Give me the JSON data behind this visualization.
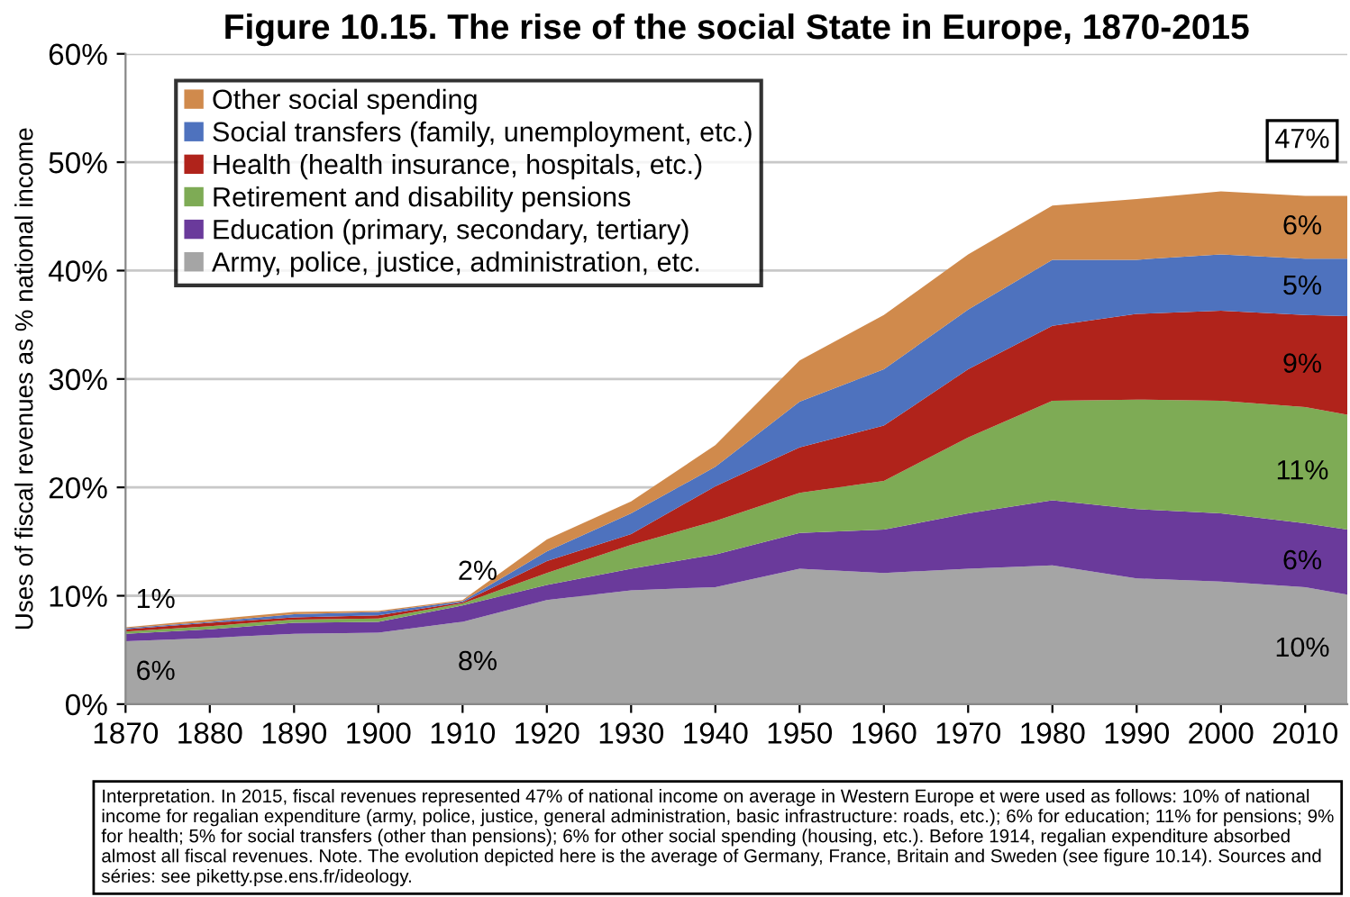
{
  "chart_data": {
    "type": "area",
    "stacked": true,
    "title": "Figure 10.15. The rise of the social State in Europe, 1870-2015",
    "ylabel": "Uses of fiscal revenues as % national income",
    "x": [
      1870,
      1880,
      1890,
      1900,
      1910,
      1920,
      1930,
      1940,
      1950,
      1960,
      1970,
      1980,
      1990,
      2000,
      2010,
      2015
    ],
    "series": [
      {
        "name": "Army, police, justice, administration, etc.",
        "color": "#a5a5a5",
        "values": [
          5.8,
          6.1,
          6.5,
          6.6,
          7.6,
          9.6,
          10.5,
          10.8,
          12.5,
          12.1,
          12.5,
          12.8,
          11.6,
          11.3,
          10.8,
          10.1
        ],
        "value_labels": [
          "6%",
          null,
          null,
          null,
          "8%",
          null,
          null,
          null,
          null,
          null,
          null,
          null,
          null,
          null,
          null,
          "10%"
        ]
      },
      {
        "name": "Education (primary, secondary, tertiary)",
        "color": "#6a3a9b",
        "values": [
          0.7,
          0.8,
          1.0,
          1.0,
          1.5,
          1.4,
          2.0,
          3.0,
          3.3,
          4.0,
          5.1,
          6.0,
          6.4,
          6.3,
          5.9,
          6.0
        ],
        "value_labels": [
          "1%",
          null,
          null,
          null,
          "2%",
          null,
          null,
          null,
          null,
          null,
          null,
          null,
          null,
          null,
          null,
          "6%"
        ]
      },
      {
        "name": "Retirement and disability pensions",
        "color": "#7eab55",
        "values": [
          0.2,
          0.3,
          0.3,
          0.3,
          0.2,
          1.1,
          2.2,
          3.1,
          3.7,
          4.5,
          7.0,
          9.2,
          10.1,
          10.4,
          10.7,
          10.6
        ],
        "value_labels": [
          null,
          null,
          null,
          null,
          null,
          null,
          null,
          null,
          null,
          null,
          null,
          null,
          null,
          null,
          null,
          "11%"
        ]
      },
      {
        "name": "Health (health insurance, hospitals, etc.)",
        "color": "#b0231b",
        "values": [
          0.2,
          0.3,
          0.2,
          0.3,
          0.1,
          1.1,
          1.0,
          3.2,
          4.2,
          5.1,
          6.3,
          6.9,
          7.9,
          8.3,
          8.5,
          9.1
        ],
        "value_labels": [
          null,
          null,
          null,
          null,
          null,
          null,
          null,
          null,
          null,
          null,
          null,
          null,
          null,
          null,
          null,
          "9%"
        ]
      },
      {
        "name": "Social transfers (family, unemployment, etc.)",
        "color": "#4e72be",
        "values": [
          0.1,
          0.1,
          0.3,
          0.3,
          0.1,
          0.9,
          1.9,
          1.8,
          4.2,
          5.2,
          5.5,
          6.1,
          5.0,
          5.2,
          5.2,
          5.3
        ],
        "value_labels": [
          null,
          null,
          null,
          null,
          null,
          null,
          null,
          null,
          null,
          null,
          null,
          null,
          null,
          null,
          null,
          "5%"
        ]
      },
      {
        "name": "Other social spending",
        "color": "#d08a4c",
        "values": [
          0.1,
          0.2,
          0.2,
          0.1,
          0.1,
          1.1,
          1.1,
          2.0,
          3.8,
          5.0,
          5.1,
          5.0,
          5.6,
          5.8,
          5.8,
          5.8
        ],
        "value_labels": [
          null,
          null,
          null,
          null,
          null,
          null,
          null,
          null,
          null,
          null,
          null,
          null,
          null,
          null,
          null,
          "6%"
        ]
      }
    ],
    "totals": [
      null,
      null,
      null,
      null,
      null,
      null,
      null,
      null,
      null,
      null,
      null,
      null,
      null,
      null,
      null,
      "47%"
    ],
    "xlim": [
      1870,
      2015
    ],
    "xticks": [
      1870,
      1880,
      1890,
      1900,
      1910,
      1920,
      1930,
      1940,
      1950,
      1960,
      1970,
      1980,
      1990,
      2000,
      2010
    ],
    "ylim": [
      0,
      60
    ],
    "yticks": [
      {
        "value": 0,
        "label": "0%"
      },
      {
        "value": 10,
        "label": "10%"
      },
      {
        "value": 20,
        "label": "20%"
      },
      {
        "value": 30,
        "label": "30%"
      },
      {
        "value": 40,
        "label": "40%"
      },
      {
        "value": 50,
        "label": "50%"
      },
      {
        "value": 60,
        "label": "60%"
      }
    ],
    "grid": "y",
    "legend": "top left",
    "annotations": [
      "Interpretation. In 2015, fiscal revenues represented 47% of national income on average in Western Europe et were used as follows: 10% of national income for regalian expenditure (army, police, justice, general administration, basic infrastructure: roads, etc.); 6% for education; 11% for pensions; 9% for health; 5% for social transfers (other than pensions); 6% for other social spending (housing, etc.). Before 1914, regalian expenditure absorbed almost all fiscal revenues. Note. The evolution depicted here is the average of Germany, France, Britain and Sweden (see figure 10.14). Sources and séries: see piketty.pse.ens.fr/ideology."
    ]
  }
}
